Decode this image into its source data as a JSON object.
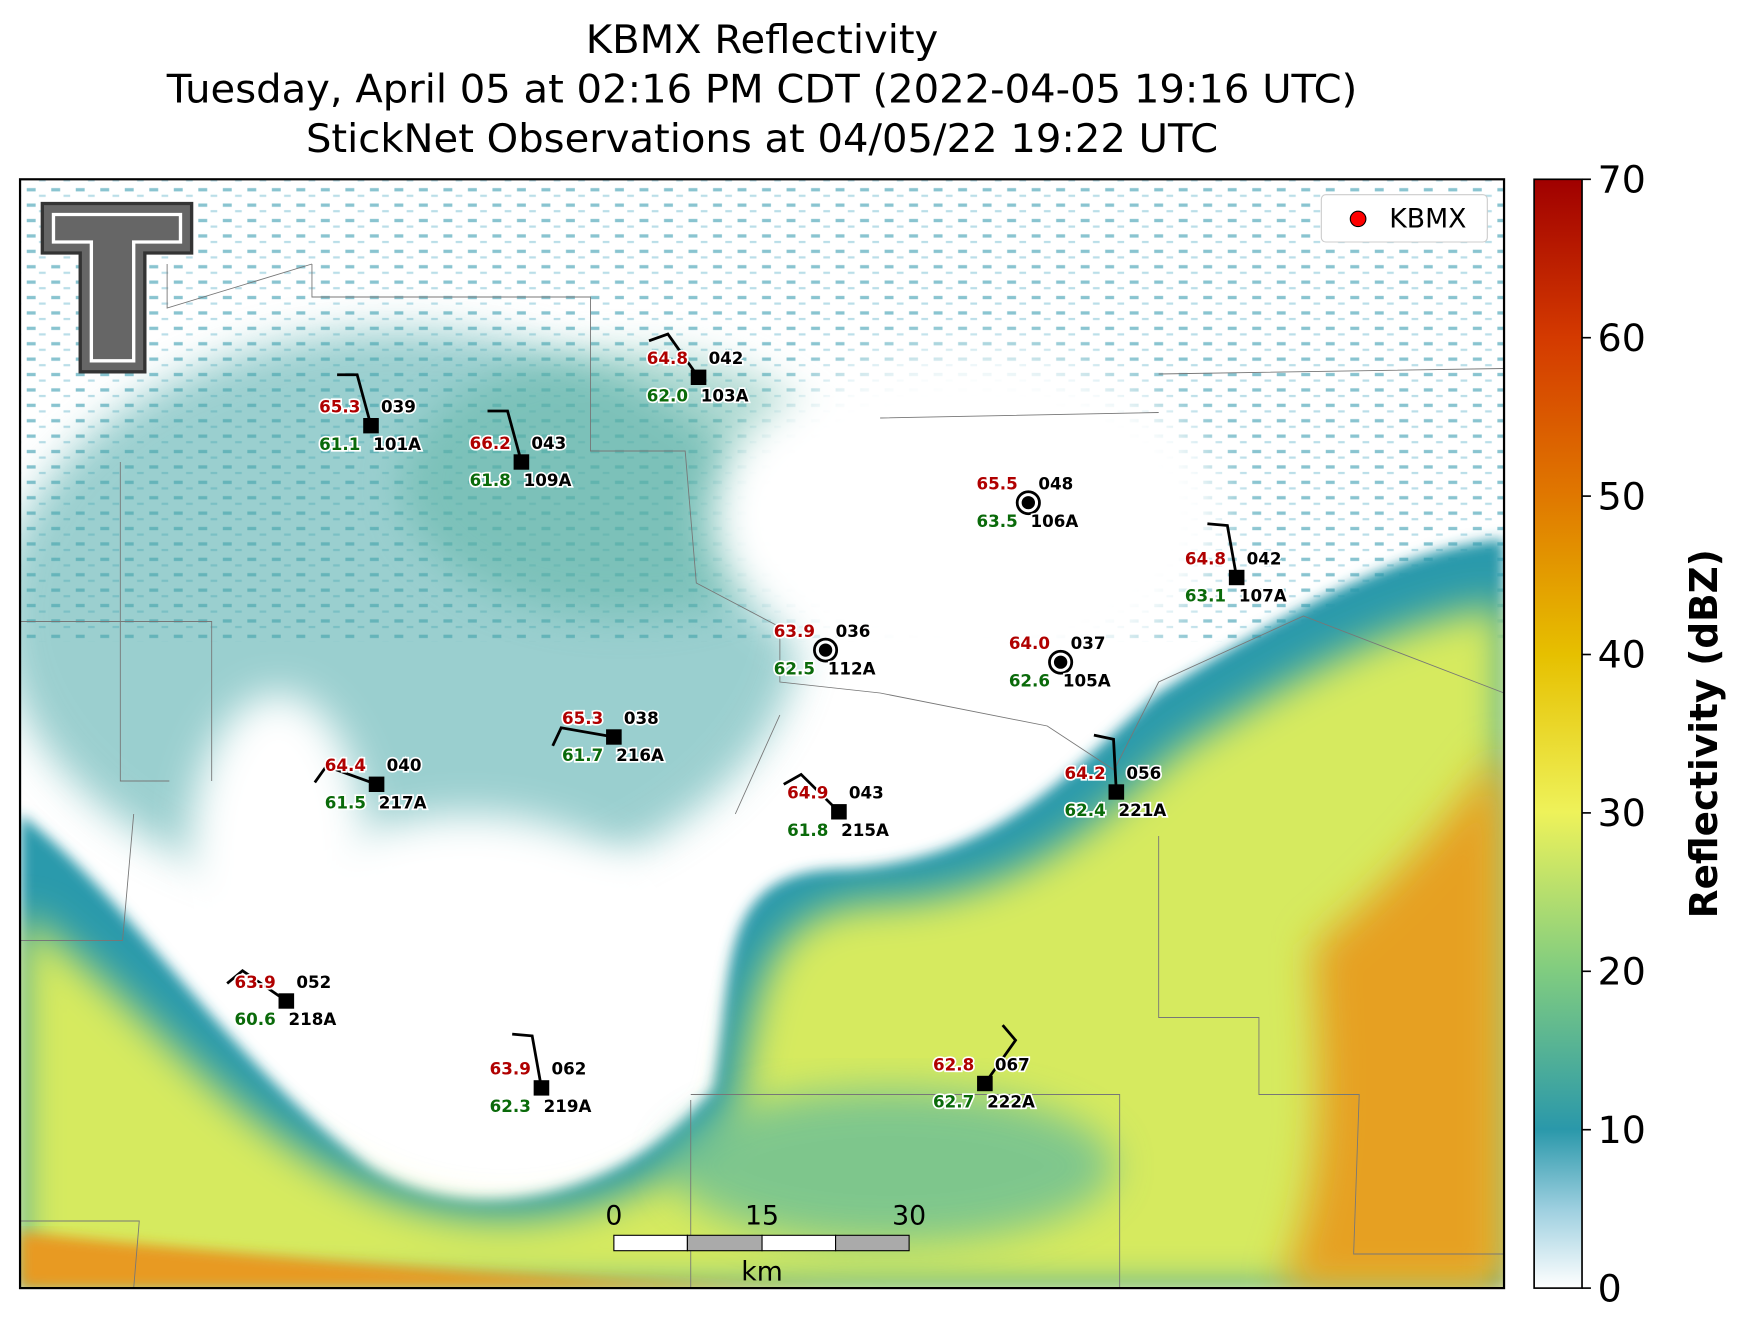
{
  "header": {
    "title": "KBMX Reflectivity",
    "subtitle": "Tuesday, April 05 at 02:16 PM CDT (2022-04-05 19:16 UTC)",
    "observations": "StickNet Observations at 04/05/22 19:22 UTC"
  },
  "legend": {
    "label": "KBMX"
  },
  "colorbar": {
    "label": "Reflectivity (dBZ)",
    "lim": [
      0,
      70
    ],
    "ticks": [
      0,
      10,
      20,
      30,
      40,
      50,
      60,
      70
    ]
  },
  "scale_bar": {
    "ticks": [
      "0",
      "15",
      "30"
    ],
    "unit": "km"
  },
  "stations": [
    {
      "id": "103A",
      "temp": "64.8",
      "dew": "62.0",
      "code": "042"
    },
    {
      "id": "101A",
      "temp": "65.3",
      "dew": "61.1",
      "code": "039"
    },
    {
      "id": "109A",
      "temp": "66.2",
      "dew": "61.8",
      "code": "043"
    },
    {
      "id": "106A",
      "temp": "65.5",
      "dew": "63.5",
      "code": "048"
    },
    {
      "id": "107A",
      "temp": "64.8",
      "dew": "63.1",
      "code": "042"
    },
    {
      "id": "112A",
      "temp": "63.9",
      "dew": "62.5",
      "code": "036"
    },
    {
      "id": "105A",
      "temp": "64.0",
      "dew": "62.6",
      "code": "037"
    },
    {
      "id": "216A",
      "temp": "65.3",
      "dew": "61.7",
      "code": "038"
    },
    {
      "id": "217A",
      "temp": "64.4",
      "dew": "61.5",
      "code": "040"
    },
    {
      "id": "215A",
      "temp": "64.9",
      "dew": "61.8",
      "code": "043"
    },
    {
      "id": "221A",
      "temp": "64.2",
      "dew": "62.4",
      "code": "056"
    },
    {
      "id": "218A",
      "temp": "63.9",
      "dew": "60.6",
      "code": "052"
    },
    {
      "id": "219A",
      "temp": "63.9",
      "dew": "62.3",
      "code": "062"
    },
    {
      "id": "222A",
      "temp": "62.8",
      "dew": "62.7",
      "code": "067"
    }
  ]
}
